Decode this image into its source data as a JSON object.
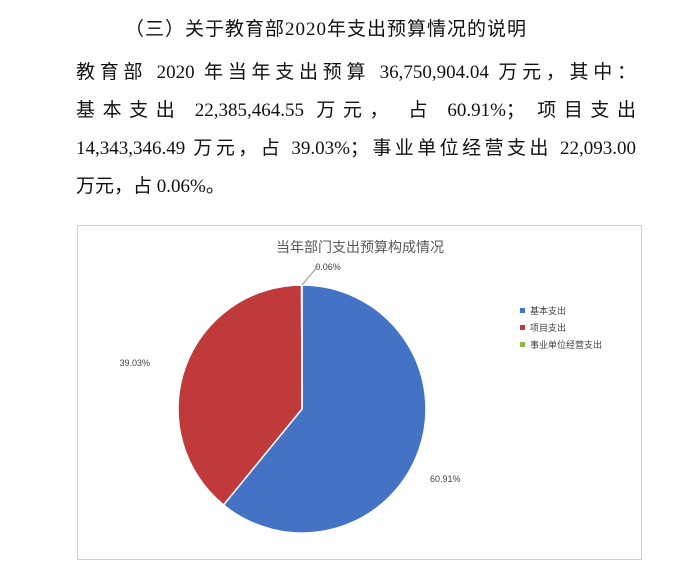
{
  "heading": "（三）关于教育部2020年支出预算情况的说明",
  "paragraph": [
    "教育部 2020 年当年支出预算 36,750,904.04 万元，其中：",
    "基本支出 22,385,464.55 万元， 占 60.91%； 项目支出",
    "14,343,346.49 万元，占 39.03%；事业单位经营支出 22,093.00",
    "万元，占 0.06%。"
  ],
  "chart_data": {
    "type": "pie",
    "title": "当年部门支出预算构成情况",
    "categories": [
      "基本支出",
      "项目支出",
      "事业单位经营支出"
    ],
    "values": [
      60.91,
      39.03,
      0.06
    ],
    "labels": [
      "60.91%",
      "39.03%",
      "0.06%"
    ],
    "colors": [
      "#4472C4",
      "#C0393B",
      "#8DB843"
    ],
    "legend_position": "right"
  }
}
